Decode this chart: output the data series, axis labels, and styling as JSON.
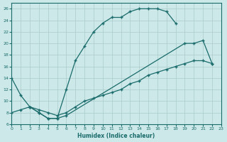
{
  "bg_color": "#cce8e8",
  "grid_color": "#aacccc",
  "line_color": "#1a6b6b",
  "xlim": [
    0,
    23
  ],
  "ylim": [
    6,
    27
  ],
  "xticks": [
    0,
    1,
    2,
    3,
    4,
    5,
    6,
    7,
    8,
    9,
    10,
    11,
    12,
    13,
    14,
    15,
    16,
    17,
    18,
    19,
    20,
    21,
    22,
    23
  ],
  "yticks": [
    6,
    8,
    10,
    12,
    14,
    16,
    18,
    20,
    22,
    24,
    26
  ],
  "xlabel": "Humidex (Indice chaleur)",
  "curve1_x": [
    0,
    1,
    2,
    3,
    4,
    5,
    6,
    7,
    8,
    9,
    10,
    11,
    12,
    13,
    14,
    15,
    16,
    17,
    18
  ],
  "curve1_y": [
    14,
    11,
    9,
    8,
    7,
    7,
    12,
    17,
    19.5,
    22,
    23.5,
    24.5,
    24.5,
    25.5,
    26,
    26,
    26,
    25.5,
    23.5
  ],
  "curve2_x": [
    2,
    3,
    4,
    5,
    6,
    19,
    20,
    21,
    22
  ],
  "curve2_y": [
    9,
    8,
    7,
    7,
    7.5,
    20,
    20,
    20.5,
    16.5
  ],
  "curve3_x": [
    0,
    1,
    2,
    3,
    4,
    5,
    6,
    7,
    8,
    9,
    10,
    11,
    12,
    13,
    14,
    15,
    16,
    17,
    18,
    19,
    20,
    21,
    22
  ],
  "curve3_y": [
    8,
    8.5,
    9,
    8.5,
    8,
    7.5,
    8,
    9,
    10,
    10.5,
    11,
    11.5,
    12,
    13,
    13.5,
    14.5,
    15,
    15.5,
    16,
    16.5,
    17,
    17,
    16.5
  ]
}
